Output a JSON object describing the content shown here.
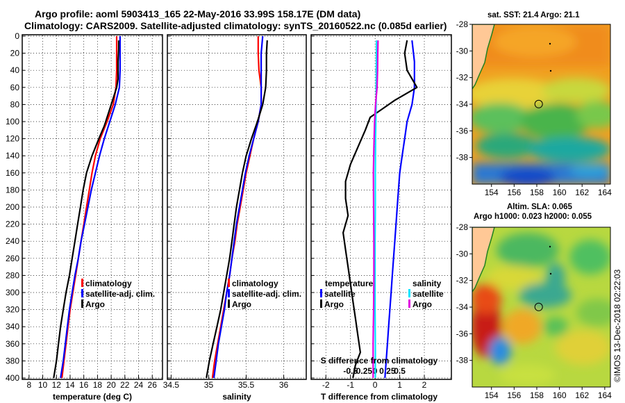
{
  "header": {
    "title_line1": "Argo profile: aoml 5903413_165 22-May-2016 33.99S 158.17E (DM data)",
    "title_line2": "Climatology: CARS2009. Satellite-adjusted climatology: synTS_20160522.nc (0.085d earlier)"
  },
  "colors": {
    "climatology": "#ff0000",
    "satellite": "#0000ff",
    "argo": "#000000",
    "sal_satellite": "#00e5ff",
    "sal_argo": "#e000e0",
    "land": "#ffc896"
  },
  "chart_data": [
    {
      "type": "line",
      "title": "",
      "xlabel": "temperature (deg C)",
      "ylabel": "",
      "xlim": [
        7,
        27.5
      ],
      "ylim": [
        400,
        0
      ],
      "x_ticks": [
        "8",
        "10",
        "12",
        "14",
        "16",
        "18",
        "20",
        "22",
        "24",
        "26"
      ],
      "x_tick_values": [
        8,
        10,
        12,
        14,
        16,
        18,
        20,
        22,
        24,
        26
      ],
      "y_ticks": [
        "0",
        "20",
        "40",
        "60",
        "80",
        "100",
        "120",
        "140",
        "160",
        "180",
        "200",
        "220",
        "240",
        "260",
        "280",
        "300",
        "320",
        "340",
        "360",
        "380",
        "400"
      ],
      "y_tick_values": [
        0,
        20,
        40,
        60,
        80,
        100,
        120,
        140,
        160,
        180,
        200,
        220,
        240,
        260,
        280,
        300,
        320,
        340,
        360,
        380,
        400
      ],
      "legend": [
        "climatology",
        "satellite-adj. clim.",
        "Argo"
      ],
      "legend_position": "lower-right",
      "series": [
        {
          "name": "climatology",
          "color": "#ff0000",
          "points": [
            [
              20.8,
              0
            ],
            [
              20.8,
              20
            ],
            [
              20.8,
              40
            ],
            [
              20.7,
              60
            ],
            [
              20.3,
              80
            ],
            [
              19.4,
              100
            ],
            [
              18.4,
              120
            ],
            [
              17.7,
              140
            ],
            [
              17.2,
              160
            ],
            [
              16.8,
              180
            ],
            [
              16.4,
              200
            ],
            [
              16.0,
              220
            ],
            [
              15.6,
              240
            ],
            [
              15.2,
              260
            ],
            [
              14.8,
              280
            ],
            [
              14.4,
              300
            ],
            [
              14.0,
              320
            ],
            [
              13.7,
              340
            ],
            [
              13.4,
              360
            ],
            [
              13.1,
              380
            ],
            [
              12.8,
              400
            ]
          ]
        },
        {
          "name": "satellite-adj. clim.",
          "color": "#0000ff",
          "points": [
            [
              21.3,
              0
            ],
            [
              21.3,
              20
            ],
            [
              21.3,
              40
            ],
            [
              21.2,
              60
            ],
            [
              20.6,
              80
            ],
            [
              19.8,
              100
            ],
            [
              19.0,
              120
            ],
            [
              18.3,
              140
            ],
            [
              17.7,
              160
            ],
            [
              17.1,
              180
            ],
            [
              16.6,
              200
            ],
            [
              16.1,
              220
            ],
            [
              15.6,
              240
            ],
            [
              15.2,
              260
            ],
            [
              14.7,
              280
            ],
            [
              14.3,
              300
            ],
            [
              13.9,
              320
            ],
            [
              13.6,
              340
            ],
            [
              13.3,
              360
            ],
            [
              13.0,
              380
            ],
            [
              12.6,
              400
            ]
          ]
        },
        {
          "name": "Argo",
          "color": "#000000",
          "points": [
            [
              21.1,
              5
            ],
            [
              21.1,
              15
            ],
            [
              21.0,
              30
            ],
            [
              21.0,
              50
            ],
            [
              20.8,
              60
            ],
            [
              20.2,
              75
            ],
            [
              19.6,
              90
            ],
            [
              19.0,
              105
            ],
            [
              18.2,
              120
            ],
            [
              17.2,
              140
            ],
            [
              16.4,
              160
            ],
            [
              15.9,
              180
            ],
            [
              15.5,
              200
            ],
            [
              15.1,
              220
            ],
            [
              14.7,
              240
            ],
            [
              14.3,
              260
            ],
            [
              13.9,
              280
            ],
            [
              13.4,
              300
            ],
            [
              13.0,
              320
            ],
            [
              12.6,
              340
            ],
            [
              12.3,
              360
            ],
            [
              12.0,
              380
            ],
            [
              11.6,
              400
            ]
          ]
        }
      ]
    },
    {
      "type": "line",
      "title": "",
      "xlabel": "salinity",
      "ylabel": "",
      "xlim": [
        34.45,
        36.3
      ],
      "ylim": [
        400,
        0
      ],
      "x_ticks": [
        "34.5",
        "35",
        "35.5",
        "36"
      ],
      "x_tick_values": [
        34.5,
        35,
        35.5,
        36
      ],
      "legend": [
        "climatology",
        "satellite-adj. clim.",
        "Argo"
      ],
      "legend_position": "lower-right",
      "series": [
        {
          "name": "climatology",
          "color": "#ff0000",
          "points": [
            [
              35.66,
              0
            ],
            [
              35.66,
              20
            ],
            [
              35.67,
              40
            ],
            [
              35.7,
              60
            ],
            [
              35.7,
              80
            ],
            [
              35.66,
              100
            ],
            [
              35.6,
              120
            ],
            [
              35.55,
              140
            ],
            [
              35.5,
              160
            ],
            [
              35.46,
              180
            ],
            [
              35.42,
              200
            ],
            [
              35.38,
              220
            ],
            [
              35.35,
              240
            ],
            [
              35.31,
              260
            ],
            [
              35.28,
              280
            ],
            [
              35.24,
              300
            ],
            [
              35.2,
              320
            ],
            [
              35.16,
              340
            ],
            [
              35.12,
              360
            ],
            [
              35.08,
              380
            ],
            [
              35.05,
              400
            ]
          ]
        },
        {
          "name": "satellite-adj. clim.",
          "color": "#0000ff",
          "points": [
            [
              35.72,
              0
            ],
            [
              35.7,
              20
            ],
            [
              35.7,
              40
            ],
            [
              35.7,
              60
            ],
            [
              35.7,
              80
            ],
            [
              35.66,
              100
            ],
            [
              35.6,
              120
            ],
            [
              35.54,
              140
            ],
            [
              35.49,
              160
            ],
            [
              35.45,
              180
            ],
            [
              35.41,
              200
            ],
            [
              35.37,
              220
            ],
            [
              35.34,
              240
            ],
            [
              35.31,
              260
            ],
            [
              35.28,
              280
            ],
            [
              35.24,
              300
            ],
            [
              35.21,
              320
            ],
            [
              35.17,
              340
            ],
            [
              35.13,
              360
            ],
            [
              35.1,
              380
            ],
            [
              35.07,
              400
            ]
          ]
        },
        {
          "name": "Argo",
          "color": "#000000",
          "points": [
            [
              35.78,
              5
            ],
            [
              35.77,
              20
            ],
            [
              35.77,
              40
            ],
            [
              35.76,
              60
            ],
            [
              35.72,
              80
            ],
            [
              35.65,
              100
            ],
            [
              35.57,
              120
            ],
            [
              35.5,
              140
            ],
            [
              35.45,
              160
            ],
            [
              35.41,
              180
            ],
            [
              35.37,
              200
            ],
            [
              35.34,
              220
            ],
            [
              35.31,
              240
            ],
            [
              35.28,
              260
            ],
            [
              35.24,
              280
            ],
            [
              35.2,
              300
            ],
            [
              35.16,
              320
            ],
            [
              35.11,
              340
            ],
            [
              35.06,
              360
            ],
            [
              35.01,
              380
            ],
            [
              34.97,
              400
            ]
          ]
        }
      ]
    },
    {
      "type": "line",
      "title": "",
      "xlabel": "T difference from climatology",
      "ylabel": "",
      "xlim": [
        -2.6,
        3.1
      ],
      "ylim": [
        400,
        0
      ],
      "x_ticks": [
        "-2",
        "-1",
        "0",
        "1",
        "2"
      ],
      "x_tick_values": [
        -2,
        -1,
        0,
        1,
        2
      ],
      "top_axis_label": "S difference from climatology",
      "top_ticks": [
        "-0.5",
        "-0.25",
        "0",
        "0.25",
        "0.5"
      ],
      "top_tick_values": [
        -0.5,
        -0.25,
        0,
        0.25,
        0.5
      ],
      "legend_titles": [
        "temperature",
        "salinity"
      ],
      "legend": [
        "satellite",
        "Argo"
      ],
      "legend_position": "lower",
      "series": [
        {
          "name": "temperature satellite",
          "color": "#0000ff",
          "points": [
            [
              1.5,
              5
            ],
            [
              1.6,
              30
            ],
            [
              1.6,
              60
            ],
            [
              1.5,
              80
            ],
            [
              1.3,
              100
            ],
            [
              1.2,
              120
            ],
            [
              1.1,
              140
            ],
            [
              1.0,
              160
            ],
            [
              0.95,
              180
            ],
            [
              0.9,
              200
            ],
            [
              0.85,
              220
            ],
            [
              0.8,
              240
            ],
            [
              0.75,
              260
            ],
            [
              0.7,
              280
            ],
            [
              0.65,
              300
            ],
            [
              0.6,
              320
            ],
            [
              0.55,
              340
            ],
            [
              0.5,
              360
            ],
            [
              0.45,
              380
            ],
            [
              0.4,
              400
            ]
          ]
        },
        {
          "name": "temperature Argo",
          "color": "#000000",
          "points": [
            [
              1.3,
              5
            ],
            [
              1.2,
              20
            ],
            [
              1.3,
              40
            ],
            [
              1.7,
              60
            ],
            [
              0.8,
              75
            ],
            [
              0.3,
              85
            ],
            [
              -0.2,
              95
            ],
            [
              -0.4,
              110
            ],
            [
              -0.7,
              130
            ],
            [
              -1.0,
              150
            ],
            [
              -1.2,
              170
            ],
            [
              -1.2,
              190
            ],
            [
              -1.1,
              210
            ],
            [
              -1.3,
              230
            ],
            [
              -1.2,
              250
            ],
            [
              -1.1,
              270
            ],
            [
              -1.0,
              290
            ],
            [
              -0.9,
              310
            ],
            [
              -0.8,
              330
            ],
            [
              -0.7,
              350
            ],
            [
              -0.6,
              370
            ],
            [
              -0.8,
              385
            ],
            [
              -0.9,
              400
            ]
          ]
        },
        {
          "name": "salinity satellite",
          "color": "#00e5ff",
          "points": [
            [
              0.06,
              5
            ],
            [
              0.05,
              40
            ],
            [
              0.04,
              80
            ],
            [
              0.02,
              120
            ],
            [
              0.01,
              160
            ],
            [
              0.01,
              200
            ],
            [
              0.0,
              240
            ],
            [
              0.0,
              280
            ],
            [
              0.0,
              320
            ],
            [
              0.01,
              360
            ],
            [
              0.01,
              400
            ]
          ]
        },
        {
          "name": "salinity Argo",
          "color": "#e000e0",
          "points": [
            [
              0.12,
              5
            ],
            [
              0.11,
              20
            ],
            [
              0.1,
              40
            ],
            [
              0.08,
              60
            ],
            [
              0.02,
              80
            ],
            [
              -0.02,
              100
            ],
            [
              -0.05,
              130
            ],
            [
              -0.07,
              160
            ],
            [
              -0.06,
              200
            ],
            [
              -0.05,
              240
            ],
            [
              -0.05,
              280
            ],
            [
              -0.06,
              320
            ],
            [
              -0.08,
              360
            ],
            [
              -0.08,
              400
            ]
          ]
        }
      ]
    }
  ],
  "maps": {
    "sst": {
      "title": "sat. SST: 21.4 Argo: 21.1",
      "lat_ticks": [
        "-28",
        "-30",
        "-32",
        "-34",
        "-36",
        "-38"
      ],
      "lat_values": [
        -28,
        -30,
        -32,
        -34,
        -36,
        -38
      ],
      "lon_ticks": [
        "154",
        "156",
        "158",
        "160",
        "162",
        "164"
      ],
      "lon_values": [
        154,
        156,
        158,
        160,
        162,
        164
      ],
      "lon_range": [
        152.3,
        164.5
      ],
      "lat_range": [
        -28,
        -40
      ]
    },
    "sla": {
      "title": "Altim. SLA: 0.065",
      "subtitle": "Argo h1000: 0.023 h2000: 0.055",
      "lat_ticks": [
        "-28",
        "-30",
        "-32",
        "-34",
        "-36",
        "-38"
      ],
      "lat_values": [
        -28,
        -30,
        -32,
        -34,
        -36,
        -38
      ],
      "lon_ticks": [
        "154",
        "156",
        "158",
        "160",
        "162",
        "164"
      ],
      "lon_values": [
        154,
        156,
        158,
        160,
        162,
        164
      ],
      "lon_range": [
        152.3,
        164.5
      ],
      "lat_range": [
        -28,
        -40
      ]
    },
    "argo_position": {
      "lon": 158.17,
      "lat": -33.99
    }
  },
  "footer": {
    "watermark": "©IMOS 13-Dec-2018 02:22:03"
  }
}
